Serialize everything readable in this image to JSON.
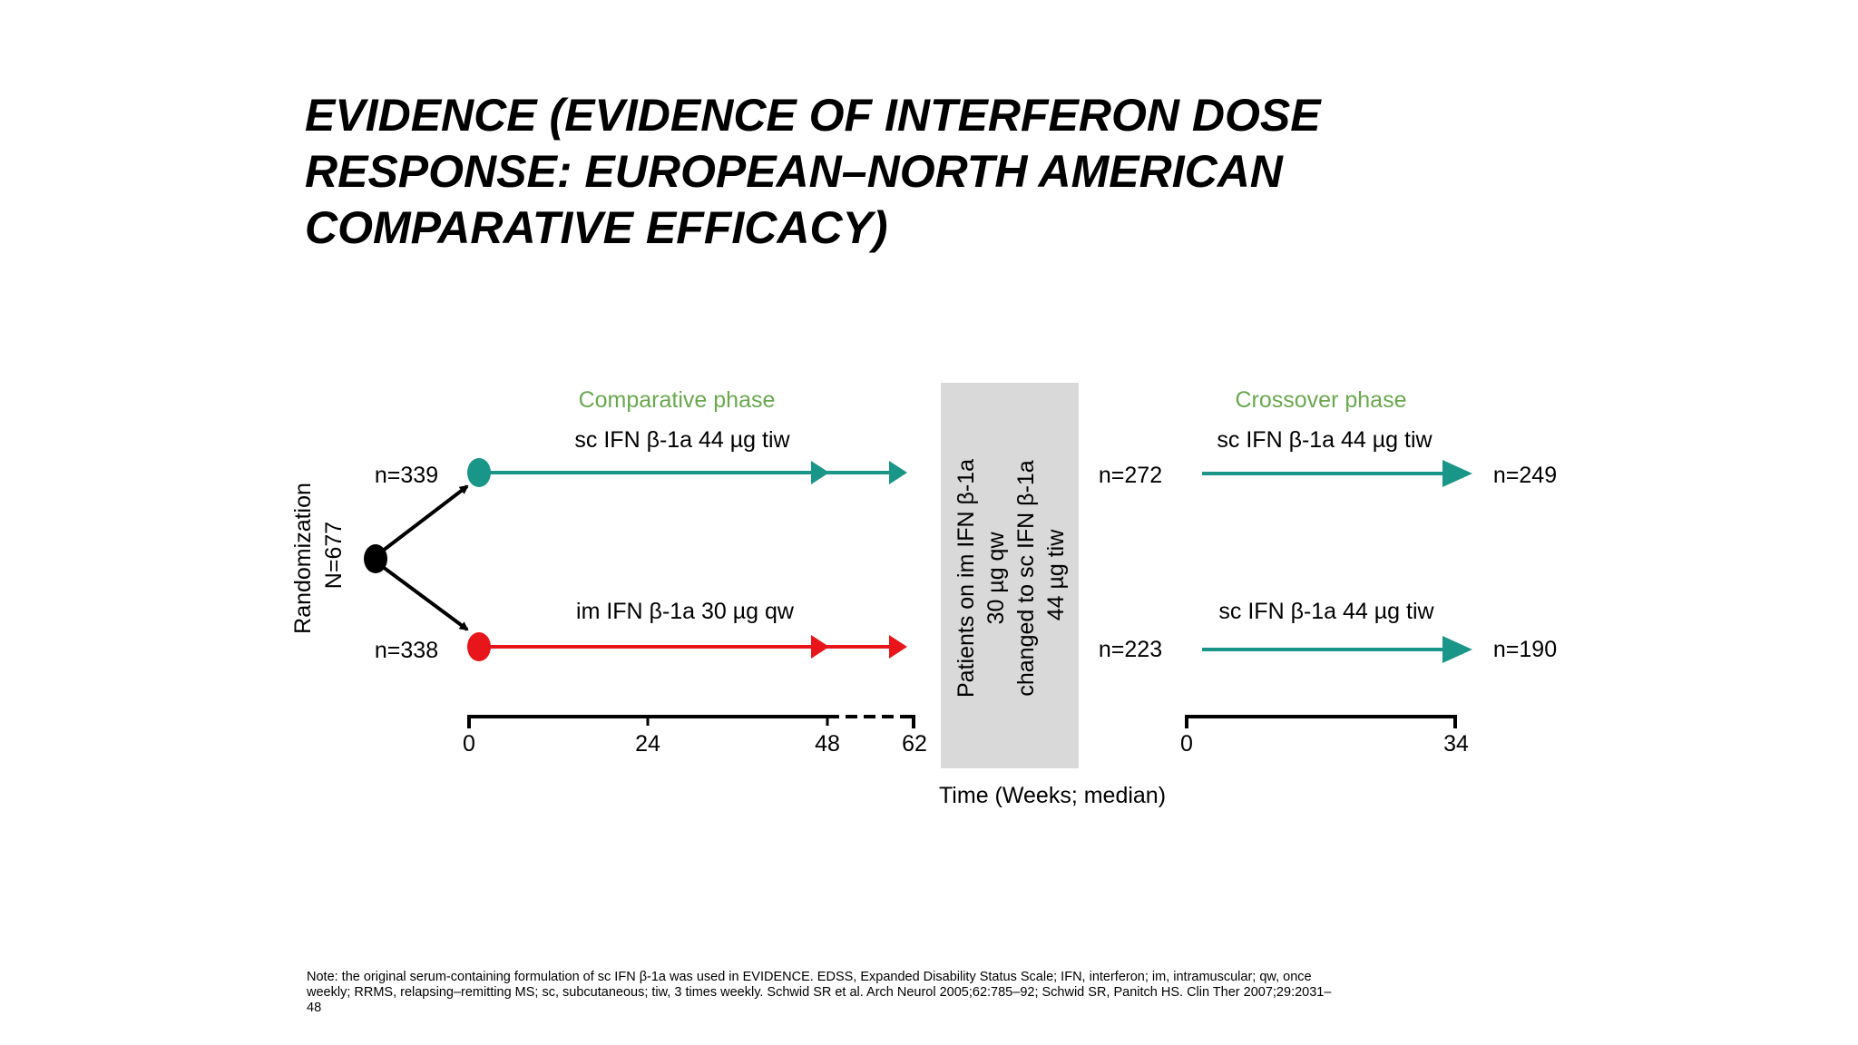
{
  "title": {
    "lines": [
      "EVIDENCE (EVIDENCE OF INTERFERON DOSE",
      "RESPONSE: EUROPEAN–NORTH AMERICAN",
      "COMPARATIVE EFFICACY)"
    ]
  },
  "phases": {
    "comparative": "Comparative phase",
    "crossover": "Crossover phase"
  },
  "randomization": {
    "label": "Randomization",
    "n": "N=677"
  },
  "arms": {
    "top": {
      "treatment": "sc IFN β-1a 44 µg tiw",
      "n_start": "n=339",
      "n_cross": "n=272",
      "cross_treatment": "sc IFN β-1a 44 µg tiw",
      "n_end": "n=249"
    },
    "bottom": {
      "treatment": "im IFN β-1a 30 µg qw",
      "n_start": "n=338",
      "n_cross": "n=223",
      "cross_treatment": "sc IFN β-1a 44 µg tiw",
      "n_end": "n=190"
    }
  },
  "switch_box": {
    "lines": [
      "Patients on im IFN β-1a",
      "30 µg qw",
      "changed to sc IFN β-1a",
      "44 µg tiw"
    ]
  },
  "axis": {
    "comparative_ticks": [
      "0",
      "24",
      "48",
      "62"
    ],
    "crossover_ticks": [
      "0",
      "34"
    ],
    "label": "Time (Weeks; median)"
  },
  "colors": {
    "teal": "#1a9688",
    "red": "#e8161b",
    "phase_green": "#6aa84f",
    "box_gray": "#d9d9d9"
  },
  "footnote": {
    "lines": [
      "Note: the original serum-containing formulation of sc IFN β-1a was used in EVIDENCE. EDSS, Expanded Disability Status Scale; IFN, interferon; im, intramuscular; qw, once",
      "weekly; RRMS, relapsing–remitting MS; sc, subcutaneous; tiw, 3 times weekly. Schwid SR et al. Arch Neurol 2005;62:785–92; Schwid SR, Panitch HS. Clin Ther 2007;29:2031–",
      "48"
    ]
  }
}
